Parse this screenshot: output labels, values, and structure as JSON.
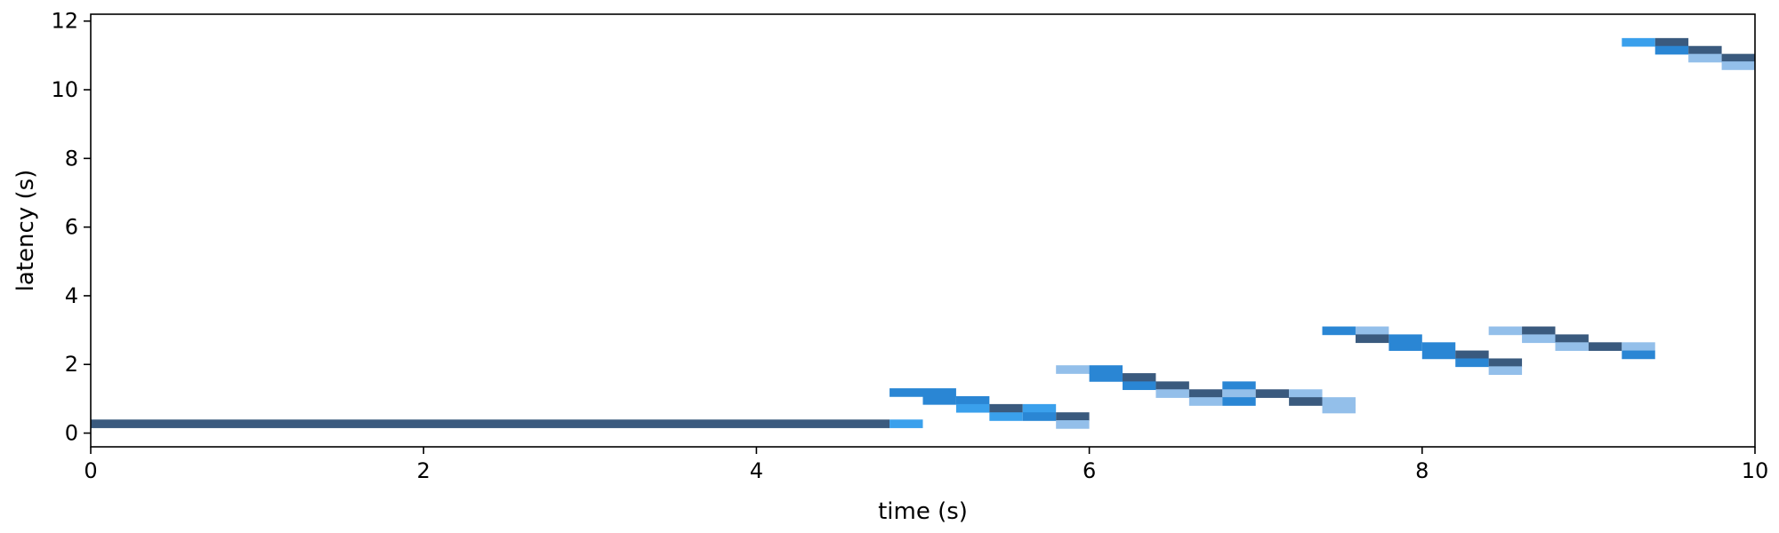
{
  "chart_data": {
    "type": "heatmap",
    "title": "",
    "xlabel": "time (s)",
    "ylabel": "latency (s)",
    "xlim": [
      0,
      10
    ],
    "ylim": [
      -0.4,
      12.2
    ],
    "xticks": [
      0,
      2,
      4,
      6,
      8,
      10
    ],
    "yticks": [
      0,
      2,
      4,
      6,
      8,
      10,
      12
    ],
    "grid": false,
    "bin_width_s": 0.2,
    "bin_height_s": 0.25,
    "colors": {
      "dark": "#3a5a7e",
      "mid": "#2a86d4",
      "bright": "#3aa0ec",
      "light": "#93bfea"
    },
    "cells": [
      {
        "x0": 0.0,
        "x1": 4.8,
        "y": 0.27,
        "color": "dark"
      },
      {
        "x0": 4.8,
        "x1": 5.0,
        "y": 0.27,
        "color": "bright"
      },
      {
        "x0": 4.8,
        "x1": 5.0,
        "y": 1.18,
        "color": "mid"
      },
      {
        "x0": 5.0,
        "x1": 5.2,
        "y": 1.18,
        "color": "mid"
      },
      {
        "x0": 5.0,
        "x1": 5.2,
        "y": 0.95,
        "color": "mid"
      },
      {
        "x0": 5.2,
        "x1": 5.4,
        "y": 0.95,
        "color": "mid"
      },
      {
        "x0": 5.2,
        "x1": 5.4,
        "y": 0.72,
        "color": "bright"
      },
      {
        "x0": 5.4,
        "x1": 5.6,
        "y": 0.72,
        "color": "dark"
      },
      {
        "x0": 5.4,
        "x1": 5.6,
        "y": 0.48,
        "color": "bright"
      },
      {
        "x0": 5.6,
        "x1": 5.8,
        "y": 0.72,
        "color": "bright"
      },
      {
        "x0": 5.6,
        "x1": 5.8,
        "y": 0.48,
        "color": "mid"
      },
      {
        "x0": 5.8,
        "x1": 6.0,
        "y": 0.48,
        "color": "dark"
      },
      {
        "x0": 5.8,
        "x1": 6.0,
        "y": 0.25,
        "color": "light"
      },
      {
        "x0": 5.8,
        "x1": 6.0,
        "y": 1.85,
        "color": "light"
      },
      {
        "x0": 6.0,
        "x1": 6.2,
        "y": 1.85,
        "color": "mid"
      },
      {
        "x0": 6.0,
        "x1": 6.2,
        "y": 1.62,
        "color": "mid"
      },
      {
        "x0": 6.2,
        "x1": 6.4,
        "y": 1.62,
        "color": "dark"
      },
      {
        "x0": 6.2,
        "x1": 6.4,
        "y": 1.38,
        "color": "mid"
      },
      {
        "x0": 6.4,
        "x1": 6.6,
        "y": 1.38,
        "color": "dark"
      },
      {
        "x0": 6.4,
        "x1": 6.6,
        "y": 1.15,
        "color": "light"
      },
      {
        "x0": 6.6,
        "x1": 6.8,
        "y": 1.15,
        "color": "dark"
      },
      {
        "x0": 6.6,
        "x1": 6.8,
        "y": 0.92,
        "color": "light"
      },
      {
        "x0": 6.8,
        "x1": 7.0,
        "y": 1.38,
        "color": "mid"
      },
      {
        "x0": 6.8,
        "x1": 7.0,
        "y": 1.15,
        "color": "light"
      },
      {
        "x0": 6.8,
        "x1": 7.0,
        "y": 0.92,
        "color": "mid"
      },
      {
        "x0": 7.0,
        "x1": 7.2,
        "y": 1.15,
        "color": "dark"
      },
      {
        "x0": 7.2,
        "x1": 7.4,
        "y": 1.15,
        "color": "light"
      },
      {
        "x0": 7.2,
        "x1": 7.4,
        "y": 0.92,
        "color": "dark"
      },
      {
        "x0": 7.4,
        "x1": 7.6,
        "y": 0.92,
        "color": "light"
      },
      {
        "x0": 7.4,
        "x1": 7.6,
        "y": 0.7,
        "color": "light"
      },
      {
        "x0": 7.4,
        "x1": 7.6,
        "y": 2.98,
        "color": "mid"
      },
      {
        "x0": 7.6,
        "x1": 7.8,
        "y": 2.98,
        "color": "light"
      },
      {
        "x0": 7.6,
        "x1": 7.8,
        "y": 2.75,
        "color": "dark"
      },
      {
        "x0": 7.8,
        "x1": 8.0,
        "y": 2.75,
        "color": "mid"
      },
      {
        "x0": 7.8,
        "x1": 8.0,
        "y": 2.52,
        "color": "mid"
      },
      {
        "x0": 8.0,
        "x1": 8.2,
        "y": 2.52,
        "color": "mid"
      },
      {
        "x0": 8.0,
        "x1": 8.2,
        "y": 2.28,
        "color": "mid"
      },
      {
        "x0": 8.2,
        "x1": 8.4,
        "y": 2.28,
        "color": "dark"
      },
      {
        "x0": 8.2,
        "x1": 8.4,
        "y": 2.05,
        "color": "mid"
      },
      {
        "x0": 8.4,
        "x1": 8.6,
        "y": 2.98,
        "color": "light"
      },
      {
        "x0": 8.4,
        "x1": 8.6,
        "y": 2.05,
        "color": "dark"
      },
      {
        "x0": 8.4,
        "x1": 8.6,
        "y": 1.82,
        "color": "light"
      },
      {
        "x0": 8.6,
        "x1": 8.8,
        "y": 2.98,
        "color": "dark"
      },
      {
        "x0": 8.6,
        "x1": 8.8,
        "y": 2.75,
        "color": "light"
      },
      {
        "x0": 8.8,
        "x1": 9.0,
        "y": 2.75,
        "color": "dark"
      },
      {
        "x0": 8.8,
        "x1": 9.0,
        "y": 2.52,
        "color": "light"
      },
      {
        "x0": 9.0,
        "x1": 9.2,
        "y": 2.52,
        "color": "dark"
      },
      {
        "x0": 9.2,
        "x1": 9.4,
        "y": 2.52,
        "color": "light"
      },
      {
        "x0": 9.2,
        "x1": 9.4,
        "y": 2.28,
        "color": "mid"
      },
      {
        "x0": 9.2,
        "x1": 9.4,
        "y": 11.38,
        "color": "bright"
      },
      {
        "x0": 9.4,
        "x1": 9.6,
        "y": 11.38,
        "color": "dark"
      },
      {
        "x0": 9.4,
        "x1": 9.6,
        "y": 11.15,
        "color": "mid"
      },
      {
        "x0": 9.6,
        "x1": 9.8,
        "y": 11.15,
        "color": "dark"
      },
      {
        "x0": 9.6,
        "x1": 9.8,
        "y": 10.92,
        "color": "light"
      },
      {
        "x0": 9.8,
        "x1": 10.0,
        "y": 10.92,
        "color": "dark"
      },
      {
        "x0": 9.8,
        "x1": 10.0,
        "y": 10.7,
        "color": "light"
      }
    ]
  }
}
